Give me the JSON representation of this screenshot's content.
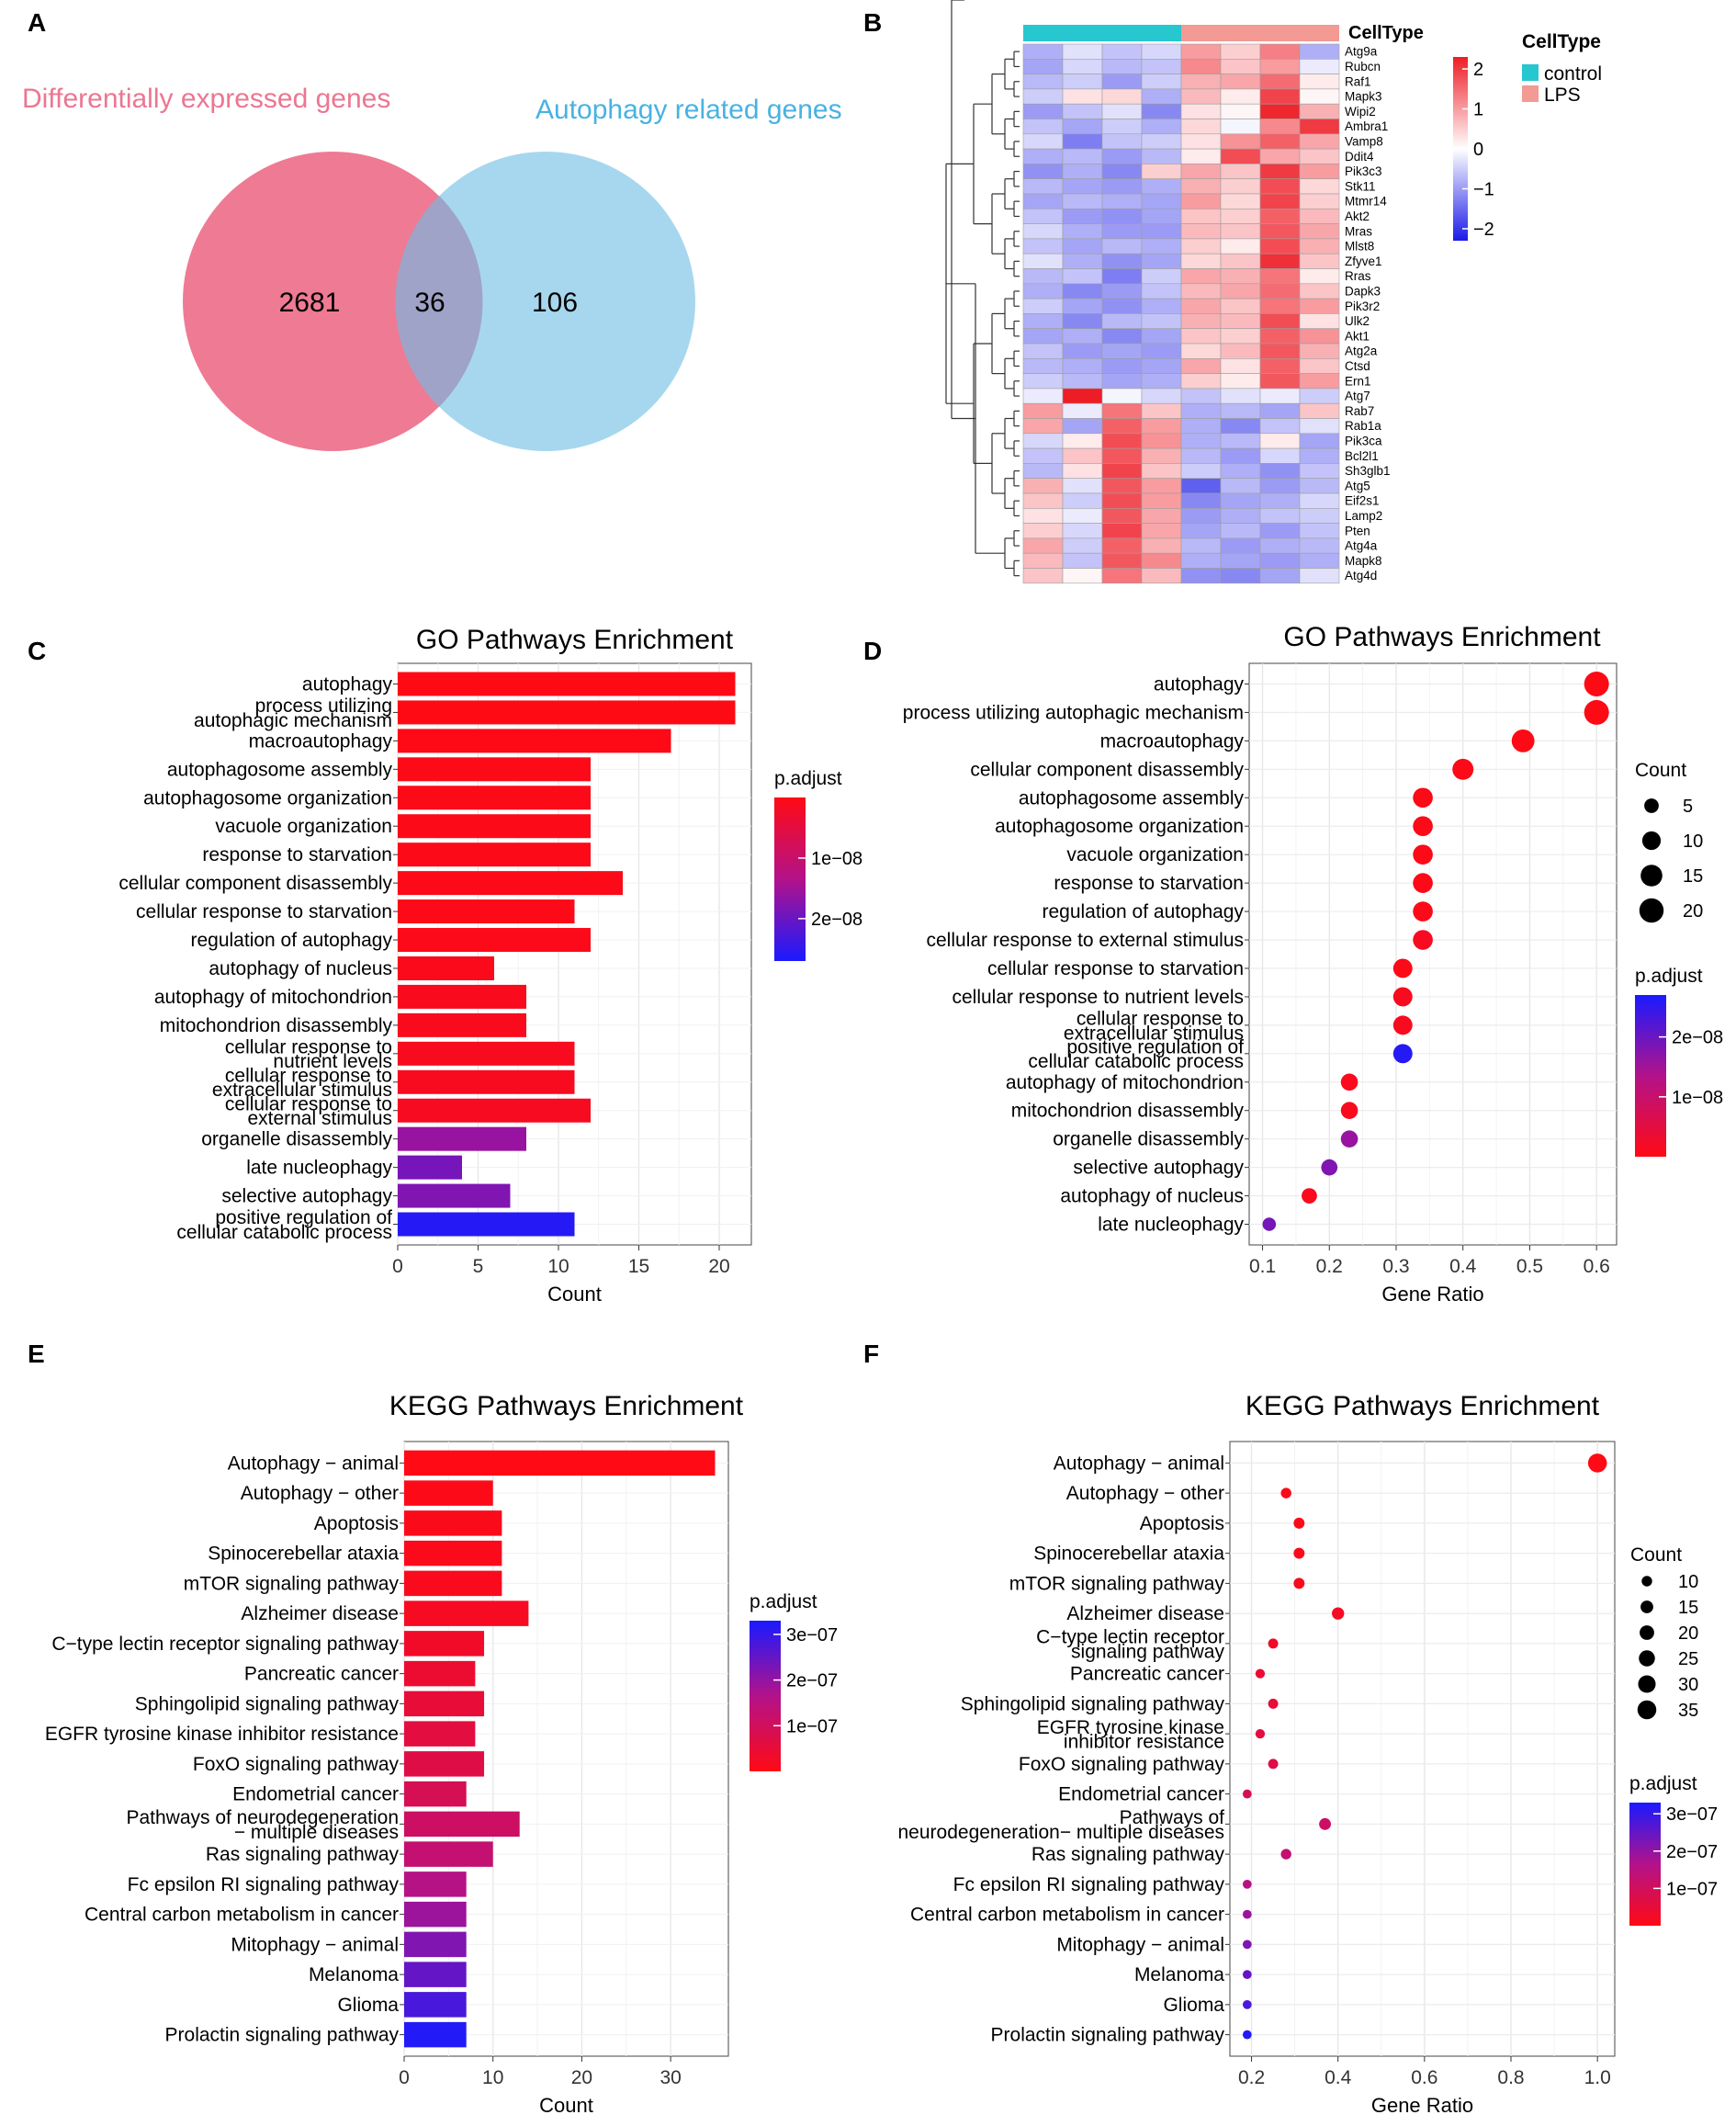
{
  "panels": {
    "A": "A",
    "B": "B",
    "C": "C",
    "D": "D",
    "E": "E",
    "F": "F"
  },
  "chart_data": [
    {
      "id": "A",
      "type": "venn",
      "sets": [
        {
          "name": "Differentially expressed genes",
          "only": 2681,
          "color": "#ee7b93"
        },
        {
          "name": "Autophagy related genes",
          "only": 106,
          "color": "#a7d7ee"
        }
      ],
      "intersection": 36
    },
    {
      "id": "B",
      "type": "heatmap",
      "annotation_title": "CellType",
      "groups": [
        {
          "name": "control",
          "color": "#27c7d0",
          "n": 4
        },
        {
          "name": "LPS",
          "color": "#f29a93",
          "n": 4
        }
      ],
      "colorbar": {
        "ticks": [
          2,
          1,
          0,
          -1,
          -2
        ],
        "labels": [
          "2",
          "1",
          "0",
          "−1",
          "−2"
        ],
        "range": [
          -2.3,
          2.3
        ]
      },
      "genes": [
        "Atg9a",
        "Rubcn",
        "Raf1",
        "Mapk3",
        "Wipi2",
        "Ambra1",
        "Vamp8",
        "Ddit4",
        "Pik3c3",
        "Stk11",
        "Mtmr14",
        "Akt2",
        "Mras",
        "Mlst8",
        "Zfyve1",
        "Rras",
        "Dapk3",
        "Pik3r2",
        "Ulk2",
        "Akt1",
        "Atg2a",
        "Ctsd",
        "Ern1",
        "Atg7",
        "Rab7",
        "Rab1a",
        "Pik3ca",
        "Bcl2l1",
        "Sh3glb1",
        "Atg5",
        "Eif2s1",
        "Lamp2",
        "Pten",
        "Atg4a",
        "Mapk8",
        "Atg4d"
      ],
      "values": [
        [
          -0.8,
          -0.3,
          -0.6,
          -0.4,
          1.0,
          0.5,
          1.3,
          -0.8
        ],
        [
          -0.9,
          -0.4,
          -0.7,
          -0.6,
          1.2,
          0.6,
          1.0,
          -0.2
        ],
        [
          -0.7,
          -0.5,
          -1.0,
          -0.5,
          0.8,
          0.9,
          1.5,
          0.2
        ],
        [
          -0.5,
          0.3,
          0.4,
          -0.8,
          0.7,
          0.2,
          1.9,
          0.1
        ],
        [
          -1.0,
          -0.6,
          -0.3,
          -1.2,
          0.3,
          0.1,
          2.2,
          0.8
        ],
        [
          -0.6,
          -0.9,
          -0.5,
          -0.8,
          0.4,
          -0.1,
          1.2,
          2.0
        ],
        [
          -0.4,
          -1.3,
          -0.6,
          -0.5,
          0.3,
          1.1,
          1.6,
          0.9
        ],
        [
          -0.8,
          -0.7,
          -1.0,
          -0.7,
          0.2,
          1.8,
          0.9,
          0.6
        ],
        [
          -1.1,
          -0.8,
          -1.2,
          0.5,
          0.9,
          0.6,
          2.0,
          1.0
        ],
        [
          -0.7,
          -0.9,
          -1.0,
          -0.8,
          0.8,
          0.5,
          1.8,
          0.4
        ],
        [
          -0.9,
          -0.7,
          -0.8,
          -0.9,
          1.0,
          0.4,
          1.9,
          0.5
        ],
        [
          -0.6,
          -1.0,
          -1.1,
          -0.9,
          0.6,
          0.5,
          1.6,
          0.7
        ],
        [
          -0.4,
          -0.8,
          -1.0,
          -1.0,
          0.7,
          0.6,
          1.7,
          0.9
        ],
        [
          -0.6,
          -0.9,
          -0.7,
          -0.8,
          0.5,
          0.2,
          1.8,
          0.8
        ],
        [
          -0.3,
          -0.8,
          -1.1,
          -0.9,
          0.4,
          0.6,
          2.1,
          0.6
        ],
        [
          -0.7,
          -0.6,
          -1.3,
          -0.5,
          0.9,
          0.8,
          1.4,
          0.2
        ],
        [
          -0.8,
          -1.2,
          -1.0,
          -0.6,
          0.7,
          0.9,
          1.5,
          0.6
        ],
        [
          -0.5,
          -0.9,
          -1.1,
          -0.8,
          0.9,
          0.6,
          1.4,
          1.0
        ],
        [
          -0.8,
          -1.2,
          -0.7,
          -0.6,
          0.8,
          0.7,
          1.8,
          0.3
        ],
        [
          -0.9,
          -0.8,
          -1.2,
          -0.9,
          0.6,
          0.5,
          1.6,
          1.1
        ],
        [
          -0.6,
          -1.0,
          -0.9,
          -1.0,
          0.4,
          0.7,
          1.7,
          0.8
        ],
        [
          -0.7,
          -0.8,
          -1.0,
          -0.9,
          0.9,
          0.3,
          1.6,
          0.6
        ],
        [
          -0.5,
          -0.7,
          -0.9,
          -0.8,
          0.5,
          0.2,
          1.7,
          1.0
        ],
        [
          -0.2,
          2.3,
          -0.1,
          -0.4,
          -0.6,
          -0.3,
          -0.2,
          -0.5
        ],
        [
          1.0,
          -0.2,
          1.4,
          0.6,
          -0.8,
          -0.7,
          -0.9,
          0.6
        ],
        [
          0.9,
          -0.9,
          1.6,
          1.0,
          -0.8,
          -1.2,
          -0.6,
          -0.3
        ],
        [
          -0.4,
          0.2,
          1.8,
          1.1,
          -0.8,
          -0.7,
          0.2,
          -0.9
        ],
        [
          -0.6,
          0.6,
          1.7,
          0.8,
          -0.7,
          -1.0,
          -0.4,
          -0.8
        ],
        [
          -0.7,
          0.3,
          1.9,
          0.6,
          -0.5,
          -0.8,
          -1.1,
          -0.6
        ],
        [
          0.8,
          -0.3,
          1.7,
          1.0,
          -1.6,
          -0.7,
          -1.0,
          -0.7
        ],
        [
          0.6,
          -0.5,
          1.8,
          1.0,
          -1.2,
          -0.9,
          -0.8,
          -0.4
        ],
        [
          0.3,
          -0.2,
          1.7,
          0.9,
          -1.0,
          -0.8,
          -0.6,
          -0.5
        ],
        [
          0.5,
          -0.4,
          1.9,
          0.9,
          -0.9,
          -0.7,
          -1.0,
          -0.6
        ],
        [
          0.9,
          -0.5,
          1.6,
          0.8,
          -0.7,
          -1.0,
          -0.8,
          -0.7
        ],
        [
          0.7,
          -0.6,
          1.7,
          1.2,
          -0.8,
          -0.9,
          -1.0,
          -0.8
        ],
        [
          0.6,
          0.1,
          1.4,
          0.7,
          -1.1,
          -1.2,
          -0.9,
          -0.3
        ]
      ]
    },
    {
      "id": "C",
      "type": "bar",
      "orientation": "horizontal",
      "title": "GO Pathways Enrichment",
      "xlabel": "Count",
      "xlim": [
        0,
        22
      ],
      "xticks": [
        0,
        5,
        10,
        15,
        20
      ],
      "categories": [
        "autophagy",
        "process utilizing autophagic mechanism",
        "macroautophagy",
        "autophagosome assembly",
        "autophagosome organization",
        "vacuole organization",
        "response to starvation",
        "cellular component disassembly",
        "cellular response to starvation",
        "regulation of autophagy",
        "autophagy of nucleus",
        "autophagy of mitochondrion",
        "mitochondrion disassembly",
        "cellular response to nutrient levels",
        "cellular response to extracellular stimulus",
        "cellular response to external stimulus",
        "organelle disassembly",
        "late nucleophagy",
        "selective autophagy",
        "positive regulation of cellular catabolic process"
      ],
      "values": [
        21,
        21,
        17,
        12,
        12,
        12,
        12,
        14,
        11,
        12,
        6,
        8,
        8,
        11,
        11,
        12,
        8,
        4,
        7,
        11
      ],
      "p_adjust": [
        1e-10,
        1e-10,
        2e-10,
        5e-10,
        5e-10,
        5e-10,
        5e-10,
        5e-10,
        5e-10,
        6e-10,
        8e-10,
        1e-09,
        1e-09,
        1.2e-09,
        1.3e-09,
        1.5e-09,
        1.6e-08,
        1.9e-08,
        1.8e-08,
        2.6e-08
      ],
      "legend": {
        "title": "p.adjust",
        "ticks": [
          1e-08,
          2e-08
        ],
        "labels": [
          "1e−08",
          "2e−08"
        ],
        "range": [
          0,
          2.7e-08
        ]
      }
    },
    {
      "id": "D",
      "type": "scatter",
      "title": "GO Pathways Enrichment",
      "xlabel": "Gene Ratio",
      "xlim": [
        0.08,
        0.63
      ],
      "xticks": [
        0.1,
        0.2,
        0.3,
        0.4,
        0.5,
        0.6
      ],
      "xtick_labels": [
        "0.1",
        "0.2",
        "0.3",
        "0.4",
        "0.5",
        "0.6"
      ],
      "categories": [
        "autophagy",
        "process utilizing autophagic mechanism",
        "macroautophagy",
        "cellular component disassembly",
        "autophagosome assembly",
        "autophagosome organization",
        "vacuole organization",
        "response to starvation",
        "regulation of autophagy",
        "cellular response to external stimulus",
        "cellular response to starvation",
        "cellular response to nutrient levels",
        "cellular response to extracellular stimulus",
        "positive regulation of cellular catabolic process",
        "autophagy of mitochondrion",
        "mitochondrion disassembly",
        "organelle disassembly",
        "selective autophagy",
        "autophagy of nucleus",
        "late nucleophagy"
      ],
      "gene_ratio": [
        0.6,
        0.6,
        0.49,
        0.4,
        0.34,
        0.34,
        0.34,
        0.34,
        0.34,
        0.34,
        0.31,
        0.31,
        0.31,
        0.31,
        0.23,
        0.23,
        0.23,
        0.2,
        0.17,
        0.11
      ],
      "count": [
        21,
        21,
        17,
        14,
        12,
        12,
        12,
        12,
        12,
        12,
        11,
        11,
        11,
        11,
        8,
        8,
        8,
        7,
        6,
        4
      ],
      "p_adjust": [
        1e-10,
        1e-10,
        2e-10,
        5e-10,
        5e-10,
        5e-10,
        5e-10,
        5e-10,
        6e-10,
        1.5e-09,
        5e-10,
        1.2e-09,
        1.3e-09,
        2.6e-08,
        1e-09,
        1e-09,
        1.6e-08,
        1.8e-08,
        8e-10,
        1.9e-08
      ],
      "size_legend": {
        "title": "Count",
        "values": [
          5,
          10,
          15,
          20
        ]
      },
      "color_legend": {
        "title": "p.adjust",
        "ticks": [
          2e-08,
          1e-08
        ],
        "labels": [
          "2e−08",
          "1e−08"
        ],
        "range": [
          0,
          2.7e-08
        ]
      }
    },
    {
      "id": "E",
      "type": "bar",
      "orientation": "horizontal",
      "title": "KEGG Pathways Enrichment",
      "xlabel": "Count",
      "xlim": [
        0,
        36.5
      ],
      "xticks": [
        0,
        10,
        20,
        30
      ],
      "categories": [
        "Autophagy − animal",
        "Autophagy − other",
        "Apoptosis",
        "Spinocerebellar ataxia",
        "mTOR signaling pathway",
        "Alzheimer disease",
        "C−type lectin receptor signaling pathway",
        "Pancreatic cancer",
        "Sphingolipid signaling pathway",
        "EGFR tyrosine kinase inhibitor resistance",
        "FoxO signaling pathway",
        "Endometrial cancer",
        "Pathways of neurodegeneration − multiple diseases",
        "Ras signaling pathway",
        "Fc epsilon RI signaling pathway",
        "Central carbon metabolism in cancer",
        "Mitophagy − animal",
        "Melanoma",
        "Glioma",
        "Prolactin signaling pathway"
      ],
      "values": [
        35,
        10,
        11,
        11,
        11,
        14,
        9,
        8,
        9,
        8,
        9,
        7,
        13,
        10,
        7,
        7,
        7,
        7,
        7,
        7
      ],
      "p_adjust": [
        1e-09,
        5e-09,
        8e-09,
        1e-08,
        1.2e-08,
        2e-08,
        3e-08,
        4e-08,
        5e-08,
        6e-08,
        7e-08,
        9e-08,
        1.1e-07,
        1.3e-07,
        1.6e-07,
        1.9e-07,
        2.2e-07,
        2.5e-07,
        2.8e-07,
        3.2e-07
      ],
      "legend": {
        "title": "p.adjust",
        "ticks": [
          3e-07,
          2e-07,
          1e-07
        ],
        "labels": [
          "3e−07",
          "2e−07",
          "1e−07"
        ],
        "range": [
          0,
          3.3e-07
        ]
      }
    },
    {
      "id": "F",
      "type": "scatter",
      "title": "KEGG Pathways Enrichment",
      "xlabel": "Gene Ratio",
      "xlim": [
        0.15,
        1.04
      ],
      "xticks": [
        0.2,
        0.4,
        0.6,
        0.8,
        1.0
      ],
      "xtick_labels": [
        "0.2",
        "0.4",
        "0.6",
        "0.8",
        "1.0"
      ],
      "categories": [
        "Autophagy − animal",
        "Autophagy − other",
        "Apoptosis",
        "Spinocerebellar ataxia",
        "mTOR signaling pathway",
        "Alzheimer disease",
        "C−type lectin receptor signaling pathway",
        "Pancreatic cancer",
        "Sphingolipid signaling pathway",
        "EGFR tyrosine kinase inhibitor resistance",
        "FoxO signaling pathway",
        "Endometrial cancer",
        "Pathways of neurodegeneration− multiple diseases",
        "Ras signaling pathway",
        "Fc epsilon RI signaling pathway",
        "Central carbon metabolism in cancer",
        "Mitophagy − animal",
        "Melanoma",
        "Glioma",
        "Prolactin signaling pathway"
      ],
      "gene_ratio": [
        1.0,
        0.28,
        0.31,
        0.31,
        0.31,
        0.4,
        0.25,
        0.22,
        0.25,
        0.22,
        0.25,
        0.19,
        0.37,
        0.28,
        0.19,
        0.19,
        0.19,
        0.19,
        0.19,
        0.19
      ],
      "count": [
        35,
        10,
        11,
        11,
        11,
        14,
        9,
        8,
        9,
        8,
        9,
        7,
        13,
        10,
        7,
        7,
        7,
        7,
        7,
        7
      ],
      "p_adjust": [
        1e-09,
        5e-09,
        8e-09,
        1e-08,
        1.2e-08,
        2e-08,
        3e-08,
        4e-08,
        5e-08,
        6e-08,
        7e-08,
        9e-08,
        1.1e-07,
        1.3e-07,
        1.6e-07,
        1.9e-07,
        2.2e-07,
        2.5e-07,
        2.8e-07,
        3.2e-07
      ],
      "size_legend": {
        "title": "Count",
        "values": [
          10,
          15,
          20,
          25,
          30,
          35
        ]
      },
      "color_legend": {
        "title": "p.adjust",
        "ticks": [
          3e-07,
          2e-07,
          1e-07
        ],
        "labels": [
          "3e−07",
          "2e−07",
          "1e−07"
        ],
        "range": [
          0,
          3.3e-07
        ]
      }
    }
  ]
}
